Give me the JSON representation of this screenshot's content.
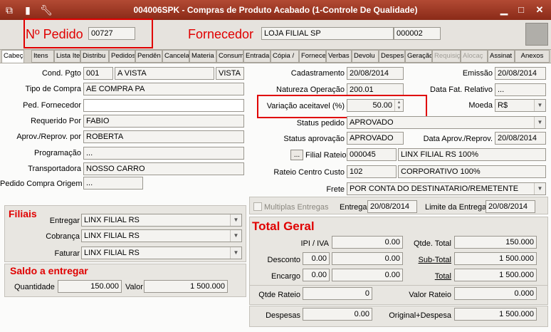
{
  "window": {
    "title": "004006SPK - Compras de Produto Acabado (1-Controle De Qualidade)"
  },
  "header": {
    "pedido_label": "Nº Pedido",
    "pedido_value": "00727",
    "fornecedor_label": "Fornecedor",
    "fornecedor_name": "LOJA FILIAL SP",
    "fornecedor_code": "000002"
  },
  "tabs": [
    "Cabeça",
    "Itens",
    "Lista Ite",
    "Distribu",
    "Pedidos",
    "Pendên",
    "Cancela",
    "Materia",
    "Consum",
    "Entrada",
    "Cópia /",
    "Fornece",
    "Verbas",
    "Devolu",
    "Despes",
    "Geração",
    "Requisiç",
    "Alocaç",
    "Assinat",
    "Anexos"
  ],
  "left": {
    "cond_pgto_label": "Cond. Pgto",
    "cond_pgto_code": "001",
    "cond_pgto_name": "A VISTA",
    "cond_pgto_type": "VISTA",
    "tipo_compra_label": "Tipo de Compra",
    "tipo_compra_value": "AE COMPRA PA",
    "ped_fornecedor_label": "Ped. Fornecedor",
    "ped_fornecedor_value": "",
    "requerido_label": "Requerido Por",
    "requerido_value": "FABIO",
    "aprov_label": "Aprov./Reprov. por",
    "aprov_value": "ROBERTA",
    "programacao_label": "Programação",
    "programacao_value": "...",
    "transportadora_label": "Transportadora",
    "transportadora_value": "NOSSO CARRO",
    "pedido_origem_label": "Pedido Compra Origem",
    "pedido_origem_value": "..."
  },
  "right": {
    "cadastramento_label": "Cadastramento",
    "cadastramento_value": "20/08/2014",
    "emissao_label": "Emissão",
    "emissao_value": "20/08/2014",
    "natureza_label": "Natureza Operação",
    "natureza_value": "200.01",
    "data_fat_label": "Data Fat. Relativo",
    "data_fat_value": "...",
    "variacao_label": "Variação aceitavel (%)",
    "variacao_value": "50.00",
    "moeda_label": "Moeda",
    "moeda_value": "R$",
    "status_pedido_label": "Status pedido",
    "status_pedido_value": "APROVADO",
    "status_aprov_label": "Status aprovação",
    "status_aprov_value": "APROVADO",
    "data_aprov_label": "Data Aprov./Reprov.",
    "data_aprov_value": "20/08/2014",
    "filial_rateio_btn": "...",
    "filial_rateio_label": "Filial Rateio",
    "filial_rateio_code": "000045",
    "filial_rateio_name": "LINX FILIAL RS 100%",
    "rateio_cc_label": "Rateio Centro Custo",
    "rateio_cc_code": "102",
    "rateio_cc_name": "CORPORATIVO 100%",
    "frete_label": "Frete",
    "frete_value": "POR CONTA DO DESTINATARIO/REMETENTE",
    "multiplas_label": "Multiplas Entregas",
    "entrega_label": "Entrega",
    "entrega_value": "20/08/2014",
    "limite_label": "Limite da Entrega",
    "limite_value": "20/08/2014"
  },
  "filiais": {
    "title": "Filiais",
    "entregar_label": "Entregar",
    "entregar_value": "LINX FILIAL RS",
    "cobranca_label": "Cobrança",
    "cobranca_value": "LINX FILIAL RS",
    "faturar_label": "Faturar",
    "faturar_value": "LINX FILIAL RS"
  },
  "saldo": {
    "title": "Saldo a entregar",
    "quantidade_label": "Quantidade",
    "quantidade_value": "150.000",
    "valor_label": "Valor",
    "valor_value": "1 500.000"
  },
  "total": {
    "title": "Total Geral",
    "ipi_label": "IPI / IVA",
    "ipi_value": "0.00",
    "qtde_total_label": "Qtde. Total",
    "qtde_total_value": "150.000",
    "desconto_label": "Desconto",
    "desconto_pct": "0.00",
    "desconto_value": "0.00",
    "subtotal_label": "Sub-Total",
    "subtotal_value": "1 500.000",
    "encargo_label": "Encargo",
    "encargo_pct": "0.00",
    "encargo_value": "0.00",
    "total_label": "Total",
    "total_value": "1 500.000",
    "qtde_rateio_label": "Qtde Rateio",
    "qtde_rateio_value": "0",
    "valor_rateio_label": "Valor Rateio",
    "valor_rateio_value": "0.000",
    "despesas_label": "Despesas",
    "despesas_value": "0.00",
    "original_label": "Original+Despesa",
    "original_value": "1 500.000"
  }
}
